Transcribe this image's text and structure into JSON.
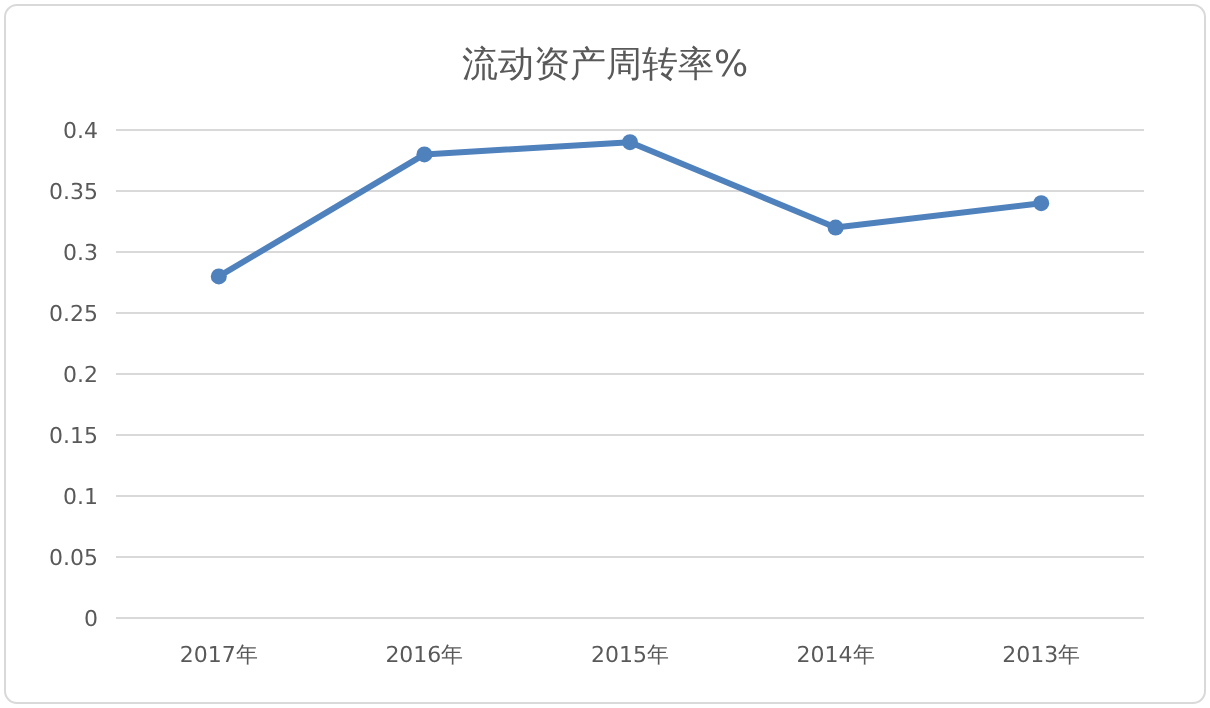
{
  "chart_data": {
    "type": "line",
    "title": "流动资产周转率%",
    "categories": [
      "2017年",
      "2016年",
      "2015年",
      "2014年",
      "2013年"
    ],
    "series": [
      {
        "color": "#4f81bd",
        "values": [
          0.28,
          0.38,
          0.39,
          0.32,
          0.34
        ]
      }
    ],
    "ylim": [
      0,
      0.4
    ],
    "yticks": [
      0,
      0.05,
      0.1,
      0.15,
      0.2,
      0.25,
      0.3,
      0.35,
      0.4
    ],
    "grid": "y",
    "marker": "circle"
  }
}
